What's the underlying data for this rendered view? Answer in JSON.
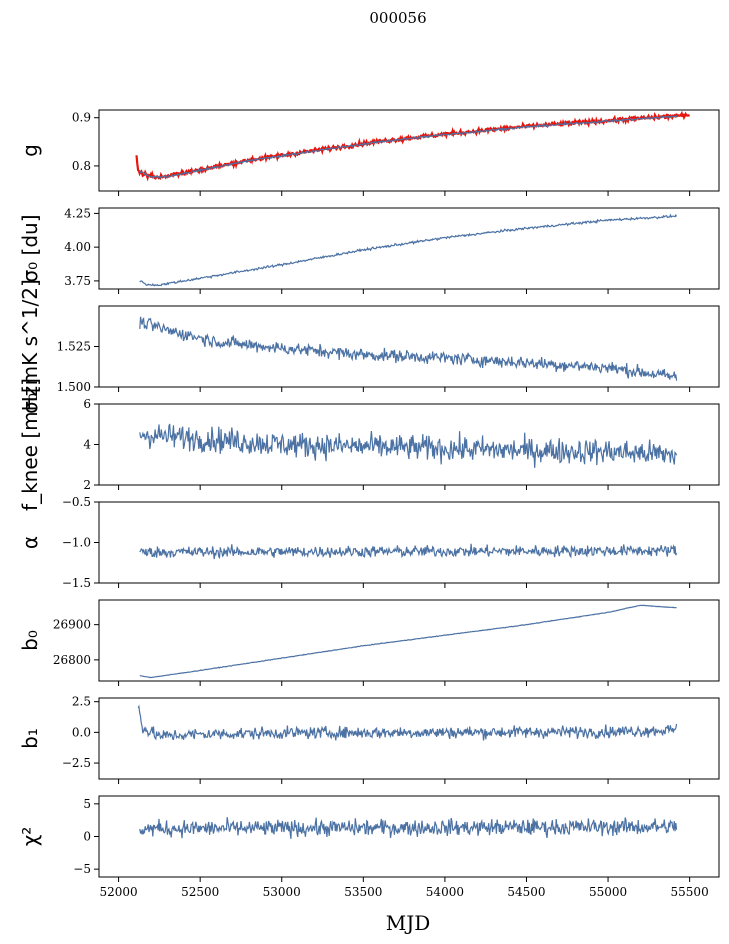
{
  "title": "000056",
  "xlabel": "MJD",
  "colors": {
    "series": "#4c72a4",
    "overlay": "#e8140e"
  },
  "chart_data": [
    {
      "type": "line",
      "id": "g",
      "ylabel": "g",
      "xlim": [
        51880,
        55680
      ],
      "ylim": [
        0.748,
        0.916
      ],
      "yticks": [
        0.8,
        0.9
      ],
      "yticklabels": [
        "0.8",
        "0.9"
      ],
      "series": [
        {
          "kind": "overlay",
          "noise": 0.003,
          "knots": [
            [
              52110,
              0.82
            ],
            [
              52120,
              0.79
            ],
            [
              52140,
              0.785
            ],
            [
              52200,
              0.778
            ],
            [
              52300,
              0.779
            ],
            [
              52500,
              0.792
            ],
            [
              52800,
              0.812
            ],
            [
              53200,
              0.832
            ],
            [
              53600,
              0.851
            ],
            [
              54000,
              0.866
            ],
            [
              54500,
              0.882
            ],
            [
              55000,
              0.894
            ],
            [
              55420,
              0.904
            ],
            [
              55500,
              0.904
            ]
          ]
        },
        {
          "kind": "main",
          "noise": 0.0015,
          "knots": [
            [
              52130,
              0.79
            ],
            [
              52200,
              0.777
            ],
            [
              52300,
              0.778
            ],
            [
              52500,
              0.791
            ],
            [
              52800,
              0.811
            ],
            [
              53200,
              0.831
            ],
            [
              53600,
              0.85
            ],
            [
              54000,
              0.865
            ],
            [
              54500,
              0.881
            ],
            [
              55000,
              0.893
            ],
            [
              55420,
              0.903
            ]
          ]
        }
      ]
    },
    {
      "type": "line",
      "id": "sigma0_du",
      "ylabel": "σ₀ [du]",
      "xlim": [
        51880,
        55680
      ],
      "ylim": [
        3.69,
        4.29
      ],
      "yticks": [
        3.75,
        4.0,
        4.25
      ],
      "yticklabels": [
        "3.75",
        "4.00",
        "4.25"
      ],
      "series": [
        {
          "kind": "main",
          "noise": 0.006,
          "knots": [
            [
              52130,
              3.75
            ],
            [
              52180,
              3.72
            ],
            [
              52250,
              3.72
            ],
            [
              52500,
              3.77
            ],
            [
              53000,
              3.87
            ],
            [
              53500,
              3.98
            ],
            [
              54000,
              4.07
            ],
            [
              54500,
              4.14
            ],
            [
              55000,
              4.2
            ],
            [
              55420,
              4.23
            ]
          ]
        }
      ]
    },
    {
      "type": "line",
      "id": "sigma0_mk",
      "ylabel": "σ₀[mK s^1/2]",
      "xlim": [
        51880,
        55680
      ],
      "ylim": [
        1.5,
        1.55
      ],
      "yticks": [
        1.5,
        1.525
      ],
      "yticklabels": [
        "1.500",
        "1.525"
      ],
      "series": [
        {
          "kind": "main",
          "noise": 0.0028,
          "knots": [
            [
              52130,
              1.54
            ],
            [
              52300,
              1.535
            ],
            [
              52600,
              1.528
            ],
            [
              53000,
              1.524
            ],
            [
              53500,
              1.52
            ],
            [
              54000,
              1.518
            ],
            [
              54500,
              1.515
            ],
            [
              55000,
              1.512
            ],
            [
              55420,
              1.506
            ]
          ]
        }
      ]
    },
    {
      "type": "line",
      "id": "fknee",
      "ylabel": "f_knee [mHz]",
      "xlim": [
        51880,
        55680
      ],
      "ylim": [
        2,
        6
      ],
      "yticks": [
        2,
        4,
        6
      ],
      "yticklabels": [
        "2",
        "4",
        "6"
      ],
      "series": [
        {
          "kind": "main",
          "noise": 0.45,
          "knots": [
            [
              52130,
              4.5
            ],
            [
              52500,
              4.3
            ],
            [
              53000,
              4.0
            ],
            [
              53500,
              3.9
            ],
            [
              54000,
              3.8
            ],
            [
              54500,
              3.7
            ],
            [
              55000,
              3.65
            ],
            [
              55420,
              3.5
            ]
          ]
        }
      ]
    },
    {
      "type": "line",
      "id": "alpha",
      "ylabel": "α",
      "xlim": [
        51880,
        55680
      ],
      "ylim": [
        -1.5,
        -0.5
      ],
      "yticks": [
        -1.5,
        -1.0,
        -0.5
      ],
      "yticklabels": [
        "−1.5",
        "−1.0",
        "−0.5"
      ],
      "series": [
        {
          "kind": "main",
          "noise": 0.05,
          "knots": [
            [
              52130,
              -1.12
            ],
            [
              55420,
              -1.1
            ]
          ]
        }
      ]
    },
    {
      "type": "line",
      "id": "b0",
      "ylabel": "b₀",
      "xlim": [
        51880,
        55680
      ],
      "ylim": [
        26740,
        26970
      ],
      "yticks": [
        26800,
        26900
      ],
      "yticklabels": [
        "26800",
        "26900"
      ],
      "series": [
        {
          "kind": "main",
          "noise": 0.6,
          "knots": [
            [
              52130,
              26755
            ],
            [
              52200,
              26750
            ],
            [
              52500,
              26770
            ],
            [
              53000,
              26805
            ],
            [
              53500,
              26840
            ],
            [
              54000,
              26870
            ],
            [
              54500,
              26900
            ],
            [
              55000,
              26935
            ],
            [
              55200,
              26955
            ],
            [
              55420,
              26948
            ]
          ]
        }
      ]
    },
    {
      "type": "line",
      "id": "b1",
      "ylabel": "b₁",
      "xlim": [
        51880,
        55680
      ],
      "ylim": [
        -3.8,
        2.8
      ],
      "yticks": [
        -2.5,
        0.0,
        2.5
      ],
      "yticklabels": [
        "−2.5",
        "0.0",
        "2.5"
      ],
      "series": [
        {
          "kind": "main",
          "noise": 0.35,
          "knots": [
            [
              52120,
              2.3
            ],
            [
              52150,
              0.3
            ],
            [
              52250,
              -0.3
            ],
            [
              52500,
              -0.15
            ],
            [
              53000,
              -0.05
            ],
            [
              54000,
              0.0
            ],
            [
              55000,
              0.05
            ],
            [
              55420,
              0.2
            ]
          ]
        }
      ]
    },
    {
      "type": "line",
      "id": "chi2",
      "ylabel": "χ²",
      "xlim": [
        51880,
        55680
      ],
      "ylim": [
        -6.2,
        6.2
      ],
      "yticks": [
        -5,
        0,
        5
      ],
      "yticklabels": [
        "−5",
        "0",
        "5"
      ],
      "series": [
        {
          "kind": "main",
          "noise": 0.9,
          "knots": [
            [
              52130,
              1.2
            ],
            [
              55420,
              1.5
            ]
          ]
        }
      ]
    }
  ],
  "xticks": [
    52000,
    52500,
    53000,
    53500,
    54000,
    54500,
    55000,
    55500
  ],
  "xticklabels": [
    "52000",
    "52500",
    "53000",
    "53500",
    "54000",
    "54500",
    "55000",
    "55500"
  ]
}
